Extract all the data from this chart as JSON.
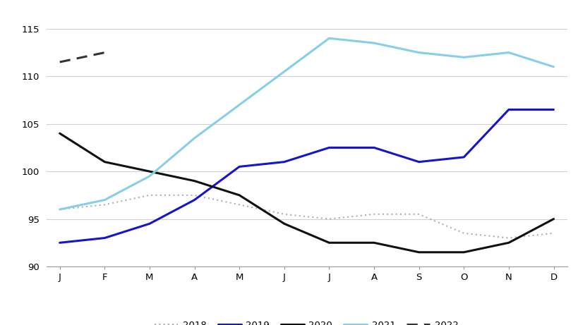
{
  "months": [
    "J",
    "F",
    "M",
    "A",
    "M",
    "J",
    "J",
    "A",
    "S",
    "O",
    "N",
    "D"
  ],
  "series_2018": [
    96.0,
    96.5,
    97.5,
    97.5,
    96.5,
    95.5,
    95.0,
    95.5,
    95.5,
    93.5,
    93.0,
    93.5
  ],
  "series_2019": [
    92.5,
    93.0,
    94.5,
    97.0,
    100.5,
    101.0,
    102.5,
    102.5,
    101.0,
    101.5,
    106.5,
    106.5
  ],
  "series_2020": [
    104.0,
    101.0,
    100.0,
    99.0,
    97.5,
    94.5,
    92.5,
    92.5,
    91.5,
    91.5,
    92.5,
    95.0
  ],
  "series_2021": [
    96.0,
    97.0,
    99.5,
    103.5,
    107.0,
    110.5,
    114.0,
    113.5,
    112.5,
    112.0,
    112.5,
    111.0
  ],
  "series_2022": [
    111.5,
    112.5,
    null,
    null,
    null,
    null,
    null,
    null,
    null,
    null,
    null,
    null
  ],
  "color_2018": "#b0b0b0",
  "color_2019": "#1515cc",
  "color_2020": "#111111",
  "color_2021": "#87CEEB",
  "color_2022": "#333333",
  "ylim": [
    90,
    117
  ],
  "yticks": [
    90,
    95,
    100,
    105,
    110,
    115
  ],
  "background_color": "#ffffff",
  "grid_color": "#d0d0d0"
}
